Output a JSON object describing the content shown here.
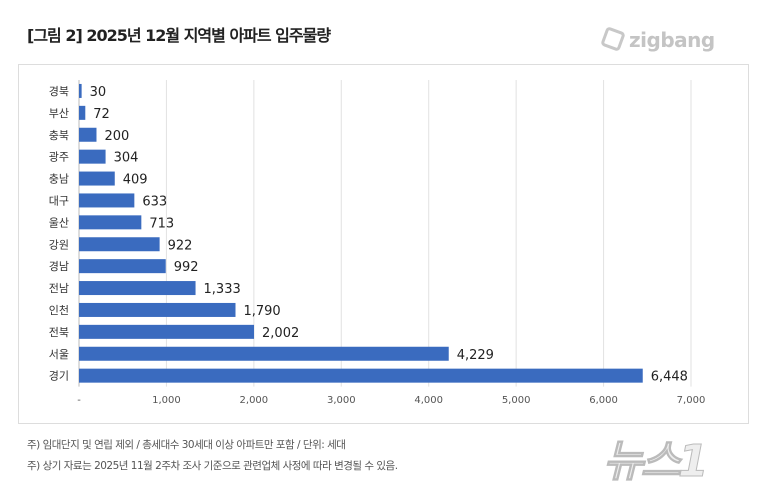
{
  "title": "[그림 2] 2025년 12월 지역별 아파트 입주물량",
  "logo": "zigbang",
  "watermark": "뉴스1",
  "notes": [
    "주) 임대단지 및 연립 제외 / 총세대수 30세대 이상 아파트만 포함 / 단위: 세대",
    "주) 상기 자료는 2025년 11월 2주차 조사 기준으로 관련업체 사정에 따라 변경될 수 있음."
  ],
  "chart_data": {
    "type": "bar",
    "orientation": "horizontal",
    "categories": [
      "경북",
      "부산",
      "충북",
      "광주",
      "충남",
      "대구",
      "울산",
      "강원",
      "경남",
      "전남",
      "인천",
      "전북",
      "서울",
      "경기"
    ],
    "values": [
      30,
      72,
      200,
      304,
      409,
      633,
      713,
      922,
      992,
      1333,
      1790,
      2002,
      4229,
      6448
    ],
    "value_labels": [
      "30",
      "72",
      "200",
      "304",
      "409",
      "633",
      "713",
      "922",
      "992",
      "1,333",
      "1,790",
      "2,002",
      "4,229",
      "6,448"
    ],
    "xlim": [
      0,
      7000
    ],
    "xticks": [
      "-",
      "1,000",
      "2,000",
      "3,000",
      "4,000",
      "5,000",
      "6,000",
      "7,000"
    ],
    "grid": true,
    "bar_color": "#3a6bbf"
  }
}
